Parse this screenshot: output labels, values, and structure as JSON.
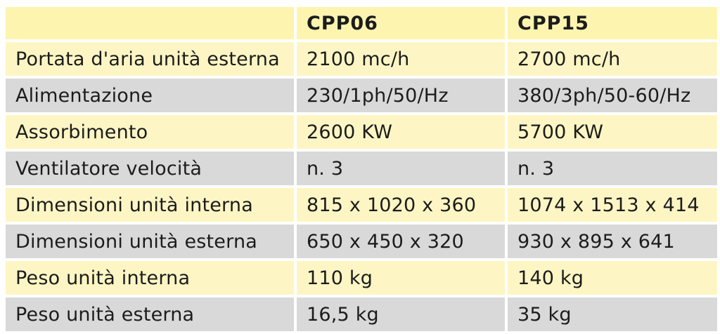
{
  "table": {
    "header": {
      "corner": "",
      "models": [
        "CPP06",
        "CPP15"
      ]
    },
    "rows": [
      {
        "label": "Portata d'aria unità esterna",
        "cpp06": "2100 mc/h",
        "cpp15": "2700 mc/h"
      },
      {
        "label": "Alimentazione",
        "cpp06": "230/1ph/50/Hz",
        "cpp15": "380/3ph/50-60/Hz"
      },
      {
        "label": "Assorbimento",
        "cpp06": "2600 KW",
        "cpp15": "5700 KW"
      },
      {
        "label": "Ventilatore velocità",
        "cpp06": "n. 3",
        "cpp15": "n. 3"
      },
      {
        "label": "Dimensioni unità interna",
        "cpp06": "815 x 1020 x 360",
        "cpp15": "1074 x 1513 x 414"
      },
      {
        "label": "Dimensioni unità esterna",
        "cpp06": "650 x 450 x 320",
        "cpp15": "930 x 895 x 641"
      },
      {
        "label": "Peso unità interna",
        "cpp06": "110 kg",
        "cpp15": "140 kg"
      },
      {
        "label": "Peso unità esterna",
        "cpp06": "16,5 kg",
        "cpp15": "35 kg"
      }
    ]
  },
  "colors": {
    "light_row": "#fdf6c4",
    "dark_row": "#d9d9d9",
    "header": "#fdf4b0"
  }
}
